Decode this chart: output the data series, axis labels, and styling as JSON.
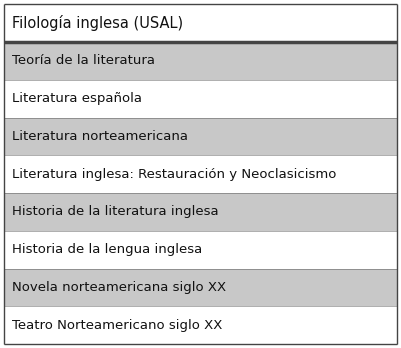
{
  "header": "Filología inglesa (USAL)",
  "rows": [
    {
      "text": "Teoría de la literatura",
      "shaded": true
    },
    {
      "text": "Literatura española",
      "shaded": false
    },
    {
      "text": "Literatura norteamericana",
      "shaded": true
    },
    {
      "text": "Literatura inglesa: Restauración y Neoclasicismo",
      "shaded": false
    },
    {
      "text": "Historia de la literatura inglesa",
      "shaded": true
    },
    {
      "text": "Historia de la lengua inglesa",
      "shaded": false
    },
    {
      "text": "Novela norteamericana siglo XX",
      "shaded": true
    },
    {
      "text": "Teatro Norteamericano siglo XX",
      "shaded": false
    }
  ],
  "shaded_color": "#c8c8c8",
  "white_color": "#ffffff",
  "border_color": "#444444",
  "text_color": "#111111",
  "header_fontsize": 10.5,
  "row_fontsize": 9.5,
  "fig_width": 4.01,
  "fig_height": 3.48,
  "dpi": 100
}
